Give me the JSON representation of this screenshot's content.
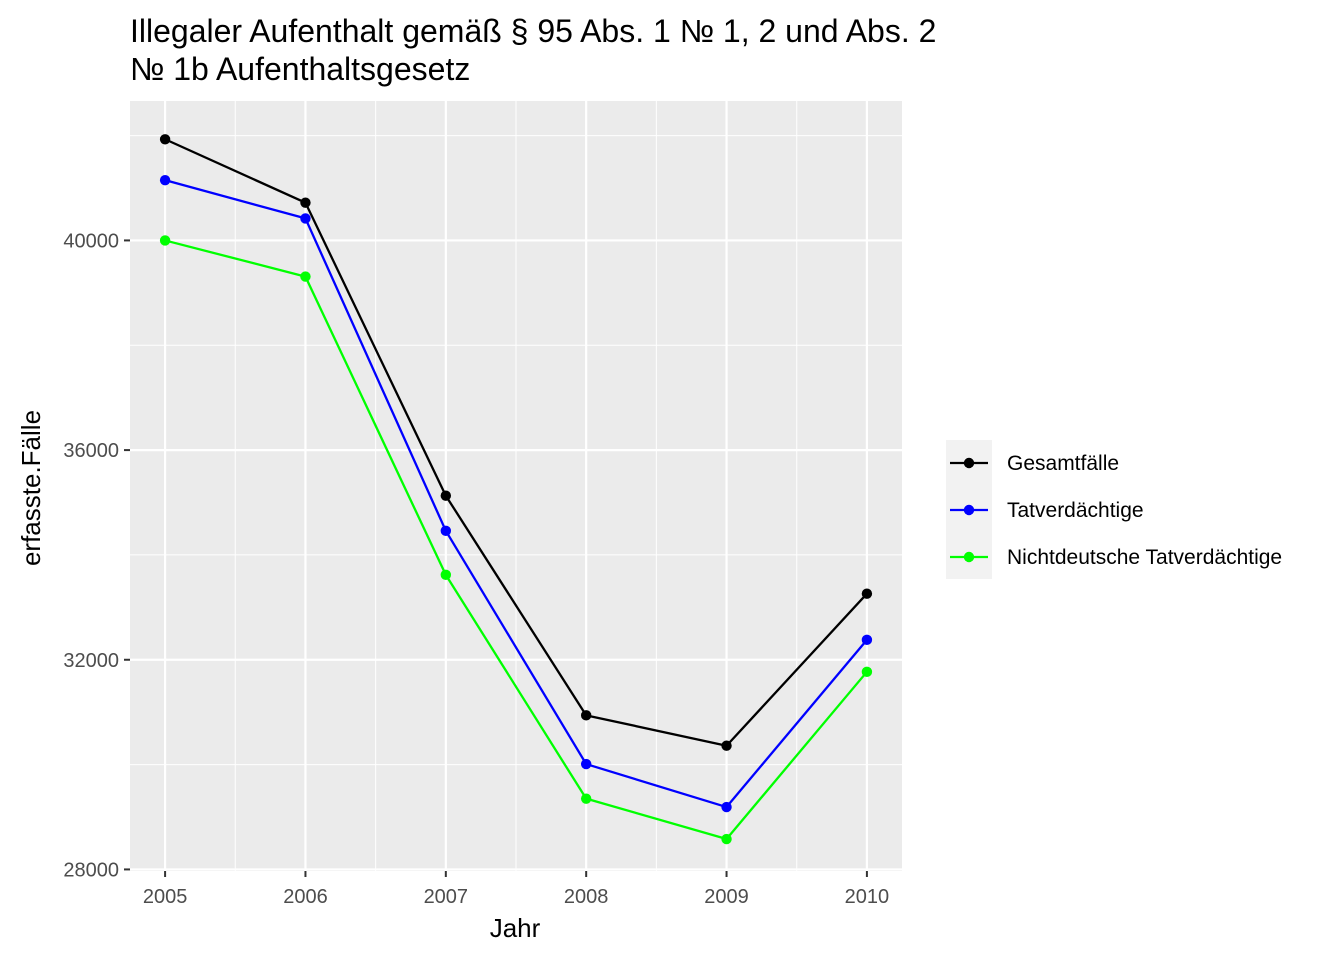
{
  "chart_data": {
    "type": "line",
    "title_lines": [
      "Illegaler Aufenthalt gemäß § 95 Abs. 1 № 1, 2 und Abs. 2",
      "№ 1b Aufenthaltsgesetz"
    ],
    "xlabel": "Jahr",
    "ylabel": "erfasste.Fälle",
    "x": [
      2005,
      2006,
      2007,
      2008,
      2009,
      2010
    ],
    "x_tick_labels": [
      "2005",
      "2006",
      "2007",
      "2008",
      "2009",
      "2010"
    ],
    "y_ticks": [
      28000,
      32000,
      36000,
      40000
    ],
    "y_tick_labels": [
      "28000",
      "32000",
      "36000",
      "40000"
    ],
    "xlim": [
      2004.75,
      2010.25
    ],
    "ylim": [
      27970,
      42660
    ],
    "grid": true,
    "legend_position": "right",
    "series": [
      {
        "name": "Gesamtfälle",
        "color": "#000000",
        "values": [
          41930,
          40720,
          35130,
          30940,
          30360,
          33260
        ]
      },
      {
        "name": "Tatverdächtige",
        "color": "#0000ff",
        "values": [
          41150,
          40420,
          34460,
          30010,
          29190,
          32380
        ]
      },
      {
        "name": "Nichtdeutsche Tatverdächtige",
        "color": "#00ff00",
        "values": [
          40000,
          39310,
          33620,
          29350,
          28580,
          31770
        ]
      }
    ]
  }
}
